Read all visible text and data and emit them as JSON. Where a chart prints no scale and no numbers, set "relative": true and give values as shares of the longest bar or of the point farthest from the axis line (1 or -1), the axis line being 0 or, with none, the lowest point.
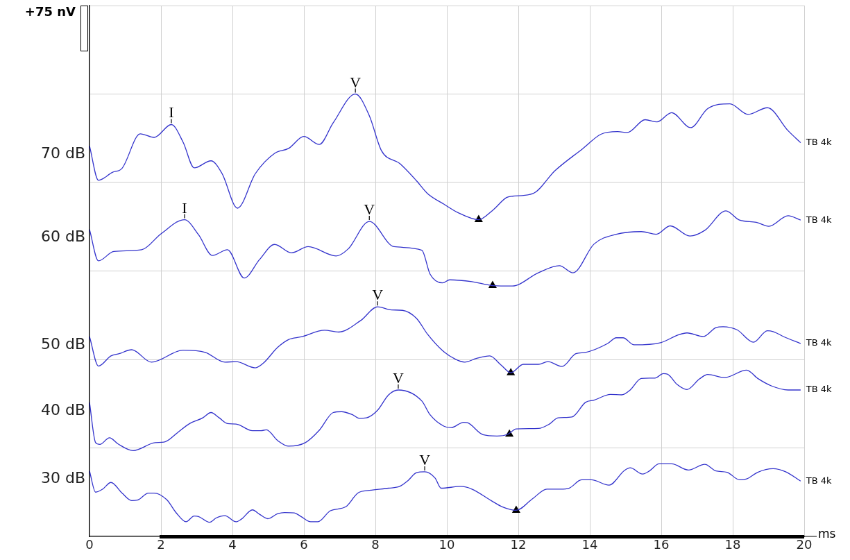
{
  "chart_data": {
    "type": "line",
    "relative": true,
    "xlabel": "ms",
    "xlim": [
      0,
      20
    ],
    "xticks": [
      0,
      2,
      4,
      6,
      8,
      10,
      12,
      14,
      16,
      18,
      20
    ],
    "grid": true,
    "legend": false,
    "marker": "none",
    "line_style": "solid",
    "annotations": [
      "+75 nV",
      {
        "text": "70 dB",
        "x": 0,
        "y": 0.883
      },
      {
        "text": "60 dB",
        "x": 0,
        "y": 0.694
      },
      {
        "text": "50 dB",
        "x": 0,
        "y": 0.452
      },
      {
        "text": "40 dB",
        "x": 0,
        "y": 0.303
      },
      {
        "text": "30 dB",
        "x": 0,
        "y": 0.148
      },
      {
        "text": "I",
        "x": 2.29,
        "y": 0.931
      },
      {
        "text": "V",
        "x": 7.44,
        "y": 1
      },
      {
        "text": "I",
        "x": 2.66,
        "y": 0.716
      },
      {
        "text": "V",
        "x": 7.83,
        "y": 0.712
      },
      {
        "text": "V",
        "x": 8.06,
        "y": 0.519
      },
      {
        "text": "V",
        "x": 8.64,
        "y": 0.331
      },
      {
        "text": "V",
        "x": 9.38,
        "y": 0.146
      }
    ],
    "series": [
      {
        "name": "TB 4k",
        "color": "#3333cc",
        "x": [
          0,
          0.25,
          0.64,
          0.91,
          1.42,
          1.81,
          2.29,
          2.62,
          2.93,
          3.4,
          3.71,
          4.14,
          4.64,
          5.18,
          5.57,
          6,
          6.43,
          6.82,
          7.44,
          7.83,
          8.17,
          8.68,
          9.15,
          9.46,
          9.92,
          10.31,
          10.89,
          11.28,
          11.67,
          11.83,
          12.41,
          13.03,
          13.81,
          14.31,
          14.78,
          15.05,
          15.55,
          15.88,
          16.29,
          16.82,
          17.3,
          17.92,
          18.43,
          18.97,
          19.55,
          19.9
        ],
        "values": [
          0.883,
          0.805,
          0.823,
          0.832,
          0.91,
          0.902,
          0.931,
          0.891,
          0.833,
          0.849,
          0.82,
          0.742,
          0.82,
          0.866,
          0.877,
          0.904,
          0.886,
          0.935,
          1,
          0.951,
          0.872,
          0.843,
          0.804,
          0.775,
          0.751,
          0.732,
          0.716,
          0.737,
          0.766,
          0.769,
          0.775,
          0.827,
          0.877,
          0.909,
          0.915,
          0.913,
          0.942,
          0.937,
          0.958,
          0.924,
          0.967,
          0.978,
          0.954,
          0.969,
          0.917,
          0.89
        ]
      },
      {
        "name": "TB 4k",
        "color": "#3333cc",
        "x": [
          0,
          0.25,
          0.68,
          1.46,
          2,
          2.66,
          3.05,
          3.44,
          3.86,
          4.33,
          4.76,
          5.18,
          5.65,
          6.12,
          6.9,
          7.24,
          7.83,
          8.52,
          9.3,
          9.53,
          9.88,
          10.08,
          10.7,
          11.28,
          11.83,
          12.56,
          13.15,
          13.53,
          14.12,
          14.74,
          15.44,
          15.86,
          16.25,
          16.8,
          17.22,
          17.81,
          18.19,
          18.66,
          19.01,
          19.55,
          19.9
        ],
        "values": [
          0.694,
          0.623,
          0.644,
          0.648,
          0.684,
          0.716,
          0.682,
          0.635,
          0.648,
          0.584,
          0.626,
          0.66,
          0.641,
          0.655,
          0.634,
          0.65,
          0.712,
          0.655,
          0.647,
          0.593,
          0.573,
          0.58,
          0.576,
          0.567,
          0.566,
          0.596,
          0.612,
          0.596,
          0.661,
          0.683,
          0.689,
          0.683,
          0.702,
          0.679,
          0.692,
          0.736,
          0.715,
          0.71,
          0.701,
          0.725,
          0.715
        ]
      },
      {
        "name": "TB 4k",
        "color": "#3333cc",
        "x": [
          0,
          0.25,
          0.6,
          0.83,
          1.18,
          1.73,
          2.62,
          3.24,
          3.79,
          4.1,
          4.64,
          4.87,
          5.26,
          5.57,
          5.92,
          6.58,
          6.97,
          7.59,
          8.06,
          8.45,
          8.76,
          9.15,
          9.46,
          9.88,
          10.23,
          10.5,
          10.82,
          11.2,
          11.51,
          11.79,
          12.14,
          12.56,
          12.83,
          13.22,
          13.61,
          13.88,
          14.5,
          14.74,
          14.93,
          15.24,
          15.98,
          16.49,
          16.72,
          17.18,
          17.53,
          17.73,
          18.12,
          18.58,
          18.97,
          19.13,
          19.44,
          19.9
        ],
        "values": [
          0.452,
          0.385,
          0.408,
          0.413,
          0.422,
          0.394,
          0.421,
          0.416,
          0.394,
          0.395,
          0.381,
          0.392,
          0.427,
          0.445,
          0.451,
          0.466,
          0.462,
          0.488,
          0.519,
          0.512,
          0.511,
          0.493,
          0.457,
          0.42,
          0.401,
          0.394,
          0.402,
          0.408,
          0.388,
          0.37,
          0.389,
          0.389,
          0.395,
          0.384,
          0.413,
          0.416,
          0.436,
          0.449,
          0.449,
          0.433,
          0.438,
          0.456,
          0.46,
          0.452,
          0.472,
          0.474,
          0.467,
          0.439,
          0.465,
          0.463,
          0.451,
          0.436
        ]
      },
      {
        "name": "TB 4k",
        "color": "#3333cc",
        "x": [
          0,
          0.17,
          0.29,
          0.56,
          0.8,
          1.22,
          1.84,
          2.08,
          2.47,
          2.78,
          3.17,
          3.4,
          3.63,
          3.86,
          4.1,
          4.56,
          4.8,
          4.95,
          5.26,
          5.57,
          6.04,
          6.43,
          6.82,
          7.05,
          7.36,
          7.55,
          7.75,
          8.06,
          8.37,
          8.64,
          9.3,
          9.53,
          9.92,
          10.12,
          10.47,
          10.58,
          11.01,
          11.4,
          11.71,
          11.94,
          12.56,
          12.87,
          13.11,
          13.5,
          13.88,
          14.12,
          14.58,
          14.89,
          15.13,
          15.44,
          15.83,
          16.06,
          16.17,
          16.45,
          16.72,
          17.07,
          17.3,
          17.77,
          18.39,
          18.7,
          19.09,
          19.55,
          19.9
        ],
        "values": [
          0.303,
          0.212,
          0.208,
          0.223,
          0.209,
          0.194,
          0.212,
          0.213,
          0.235,
          0.254,
          0.268,
          0.28,
          0.268,
          0.255,
          0.254,
          0.239,
          0.239,
          0.241,
          0.217,
          0.204,
          0.212,
          0.24,
          0.28,
          0.282,
          0.275,
          0.267,
          0.268,
          0.285,
          0.32,
          0.331,
          0.306,
          0.275,
          0.249,
          0.246,
          0.258,
          0.257,
          0.23,
          0.227,
          0.231,
          0.243,
          0.244,
          0.254,
          0.268,
          0.27,
          0.303,
          0.308,
          0.321,
          0.32,
          0.331,
          0.357,
          0.358,
          0.368,
          0.367,
          0.343,
          0.332,
          0.356,
          0.366,
          0.359,
          0.376,
          0.357,
          0.34,
          0.331,
          0.331
        ]
      },
      {
        "name": "TB 4k",
        "color": "#3333cc",
        "x": [
          0,
          0.17,
          0.37,
          0.6,
          0.91,
          1.18,
          1.34,
          1.65,
          1.81,
          2.16,
          2.43,
          2.7,
          2.93,
          3.05,
          3.36,
          3.55,
          3.79,
          4.1,
          4.25,
          4.56,
          4.76,
          4.99,
          5.26,
          5.46,
          5.73,
          5.92,
          6.19,
          6.39,
          6.74,
          7.17,
          7.51,
          7.83,
          8.37,
          8.68,
          8.91,
          9.15,
          9.38,
          9.67,
          9.84,
          10.39,
          10.7,
          11.24,
          11.55,
          11.94,
          12.41,
          12.8,
          13.18,
          13.42,
          13.77,
          14.04,
          14.54,
          14.97,
          15.13,
          15.48,
          15.67,
          15.94,
          16.29,
          16.76,
          17.22,
          17.53,
          17.84,
          18.19,
          18.39,
          18.7,
          19.13,
          19.48,
          19.9
        ],
        "values": [
          0.148,
          0.1,
          0.107,
          0.122,
          0.098,
          0.081,
          0.082,
          0.098,
          0.098,
          0.083,
          0.053,
          0.033,
          0.046,
          0.045,
          0.032,
          0.042,
          0.047,
          0.033,
          0.039,
          0.06,
          0.05,
          0.04,
          0.051,
          0.054,
          0.053,
          0.045,
          0.033,
          0.033,
          0.058,
          0.067,
          0.098,
          0.104,
          0.109,
          0.113,
          0.126,
          0.144,
          0.146,
          0.132,
          0.109,
          0.113,
          0.107,
          0.081,
          0.067,
          0.059,
          0.086,
          0.107,
          0.107,
          0.109,
          0.128,
          0.128,
          0.116,
          0.149,
          0.155,
          0.141,
          0.148,
          0.164,
          0.164,
          0.15,
          0.163,
          0.148,
          0.145,
          0.128,
          0.13,
          0.145,
          0.153,
          0.146,
          0.125
        ]
      },
      {
        "type": "scatter",
        "marker": "triangle",
        "color": "#000000",
        "x": [
          10.89,
          11.28,
          11.79,
          11.75,
          11.94
        ],
        "values": [
          0.716,
          0.567,
          0.37,
          0.231,
          0.059
        ]
      }
    ]
  }
}
